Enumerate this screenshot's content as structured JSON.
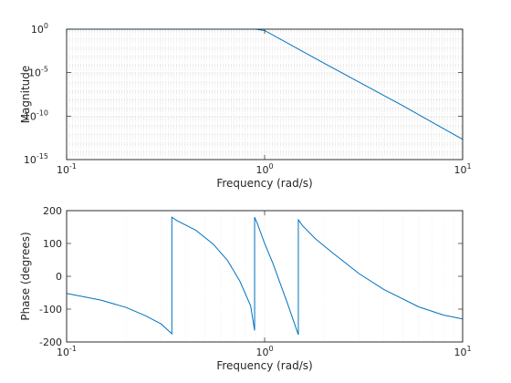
{
  "chart_data": [
    {
      "type": "line",
      "xlabel": "Frequency (rad/s)",
      "ylabel": "Magnitude",
      "xscale": "log",
      "yscale": "log",
      "xlim": [
        0.1,
        10
      ],
      "ylim": [
        1e-15,
        1
      ],
      "grid": "on (major and minor, dotted)",
      "x_ticks": [
        {
          "value": 0.1,
          "base": "10",
          "exp": "-1"
        },
        {
          "value": 1,
          "base": "10",
          "exp": "0"
        },
        {
          "value": 10,
          "base": "10",
          "exp": "1"
        }
      ],
      "y_ticks": [
        {
          "value": 1,
          "base": "10",
          "exp": "0"
        },
        {
          "value": 1e-05,
          "base": "10",
          "exp": "-5"
        },
        {
          "value": 1e-10,
          "base": "10",
          "exp": "-10"
        },
        {
          "value": 1e-15,
          "base": "10",
          "exp": "-15"
        }
      ],
      "series": [
        {
          "color": "#0072bd",
          "x": [
            0.1,
            0.3,
            0.6,
            0.9,
            1.0,
            2.0,
            5.0,
            10.0
          ],
          "y": [
            1.0,
            1.0,
            1.0,
            1.0,
            0.7,
            0.00012,
            1.5e-09,
            2.1e-13
          ]
        }
      ]
    },
    {
      "type": "line",
      "xlabel": "Frequency (rad/s)",
      "ylabel": "Phase (degrees)",
      "xscale": "log",
      "xlim": [
        0.1,
        10
      ],
      "ylim": [
        -200,
        200
      ],
      "grid": "on (vertical log gridlines, dotted)",
      "x_ticks": [
        {
          "value": 0.1,
          "base": "10",
          "exp": "-1"
        },
        {
          "value": 1,
          "base": "10",
          "exp": "0"
        },
        {
          "value": 10,
          "base": "10",
          "exp": "1"
        }
      ],
      "y_ticks": [
        {
          "value": 200,
          "label": "200"
        },
        {
          "value": 100,
          "label": "100"
        },
        {
          "value": 0,
          "label": "0"
        },
        {
          "value": -100,
          "label": "-100"
        },
        {
          "value": -200,
          "label": "-200"
        }
      ],
      "series": [
        {
          "color": "#0072bd",
          "x": [
            0.1,
            0.15,
            0.2,
            0.25,
            0.3,
            0.34,
            0.34,
            0.36,
            0.45,
            0.55,
            0.65,
            0.75,
            0.85,
            0.89,
            0.89,
            0.92,
            1.0,
            1.1,
            1.3,
            1.48,
            1.48,
            1.55,
            1.8,
            2.2,
            3.0,
            4.0,
            6.0,
            8.0,
            10.0
          ],
          "y": [
            -52,
            -73,
            -95,
            -120,
            -145,
            -175,
            180,
            170,
            140,
            98,
            48,
            -15,
            -90,
            -165,
            180,
            160,
            100,
            40,
            -80,
            -178,
            172,
            155,
            115,
            72,
            8,
            -40,
            -93,
            -118,
            -130
          ]
        }
      ]
    }
  ]
}
